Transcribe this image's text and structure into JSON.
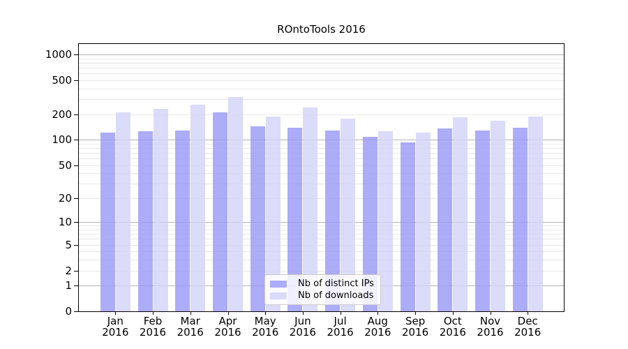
{
  "title": "ROntoTools 2016",
  "legend": {
    "items": [
      {
        "label": "Nb of distinct IPs"
      },
      {
        "label": "Nb of downloads"
      }
    ],
    "position": "lower center"
  },
  "chart_data": {
    "type": "bar",
    "title": "ROntoTools 2016",
    "categories": [
      "Jan",
      "Feb",
      "Mar",
      "Apr",
      "May",
      "Jun",
      "Jul",
      "Aug",
      "Sep",
      "Oct",
      "Nov",
      "Dec"
    ],
    "category_year": "2016",
    "series": [
      {
        "name": "Nb of distinct IPs",
        "color": "rgba(151,151,247,0.8)",
        "values": [
          122,
          126,
          128,
          210,
          144,
          138,
          128,
          108,
          93,
          135,
          128,
          140
        ]
      },
      {
        "name": "Nb of downloads",
        "color": "rgba(210,210,249,0.8)",
        "values": [
          210,
          232,
          259,
          318,
          189,
          240,
          177,
          127,
          121,
          185,
          167,
          189
        ]
      }
    ],
    "yscale": "log10(value+1)",
    "yticks": [
      0,
      1,
      2,
      5,
      10,
      20,
      50,
      100,
      200,
      500,
      1000
    ],
    "ylim": [
      0,
      1353
    ],
    "grid": {
      "major": [
        1,
        10,
        100,
        1000
      ],
      "minor_decades": [
        1,
        10,
        100
      ],
      "minor_steps": [
        2,
        3,
        4,
        5,
        6,
        7,
        8,
        9
      ]
    },
    "legend_position": "lower center",
    "colors": {
      "bar_distinct_ips": "rgba(151,151,247,0.8)",
      "bar_downloads": "rgba(210,210,249,0.8)",
      "grid_major": "#b3b3b3",
      "grid_minor": "#e9e9e9",
      "axis": "#000000",
      "text": "#000000",
      "legend_border": "#cccccc",
      "legend_bg": "rgba(255,255,255,0.82)"
    }
  }
}
